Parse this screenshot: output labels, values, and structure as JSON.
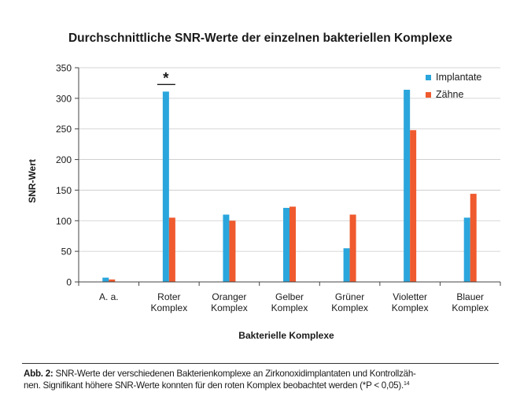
{
  "chart_data": {
    "type": "bar",
    "title": "Durchschnittliche SNR-Werte der einzelnen bakteriellen Komplexe",
    "xlabel": "Bakterielle Komplexe",
    "ylabel": "SNR-Wert",
    "ylim": [
      0,
      350
    ],
    "yticks": [
      0,
      50,
      100,
      150,
      200,
      250,
      300,
      350
    ],
    "grid": true,
    "legend_position": "top-right",
    "categories": [
      [
        "A. a."
      ],
      [
        "Roter",
        "Komplex"
      ],
      [
        "Oranger",
        "Komplex"
      ],
      [
        "Gelber",
        "Komplex"
      ],
      [
        "Grüner",
        "Komplex"
      ],
      [
        "Violetter",
        "Komplex"
      ],
      [
        "Blauer",
        "Komplex"
      ]
    ],
    "series": [
      {
        "name": "Implantate",
        "color": "#2aa6dc",
        "values": [
          7,
          311,
          110,
          121,
          55,
          314,
          105
        ]
      },
      {
        "name": "Zähne",
        "color": "#ef5a2e",
        "values": [
          4,
          105,
          100,
          123,
          110,
          248,
          144
        ]
      }
    ],
    "annotations": [
      {
        "text": "*",
        "category_index": 1,
        "series_index": 0
      }
    ]
  },
  "caption": {
    "label": "Abb. 2:",
    "line1": "SNR-Werte der verschiedenen Bakterienkomplexe an Zirkonoxidimplantaten und Kontrollzäh-",
    "line2": "nen. Signifikant höhere SNR-Werte konnten für den roten Komplex beobachtet werden (*P < 0,05).",
    "ref": "14"
  }
}
